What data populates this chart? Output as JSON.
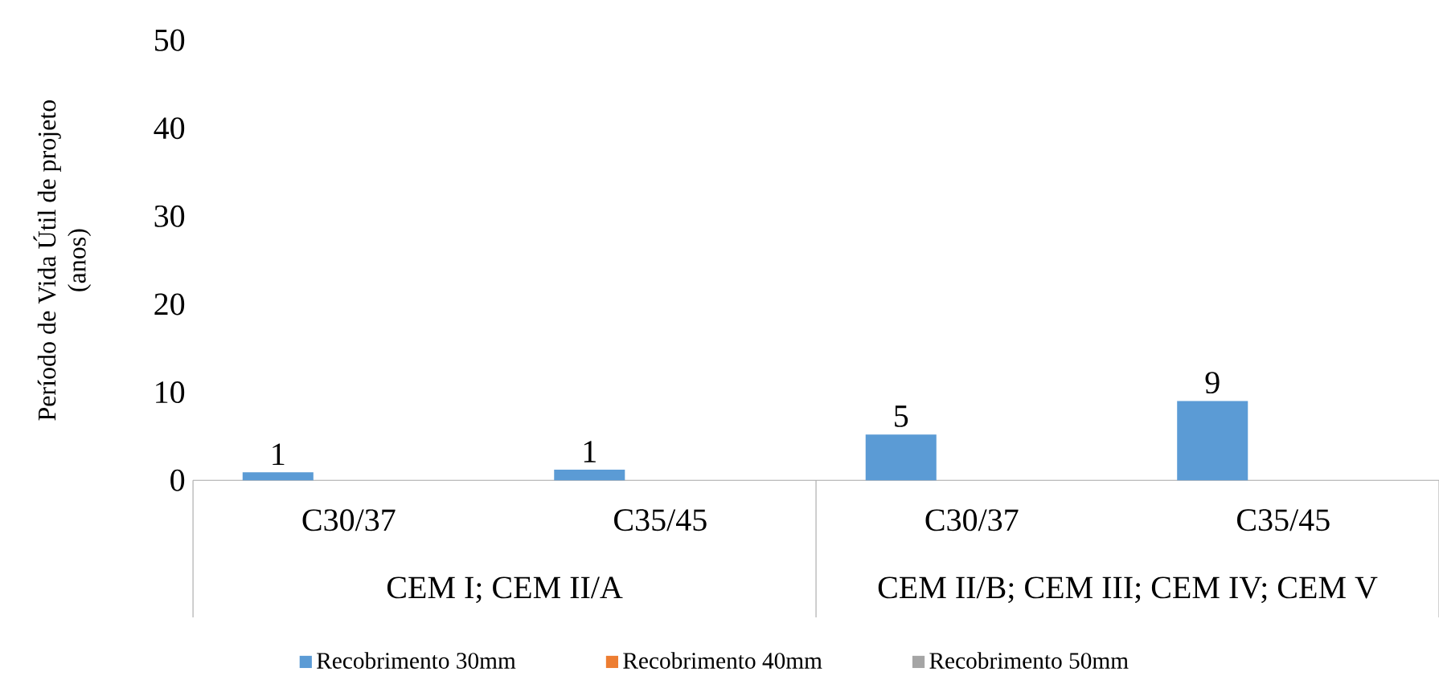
{
  "chart_data": {
    "type": "bar",
    "ylabel": "Período de Vida Útil de projeto (anos)",
    "categories": [
      "C30/37",
      "C35/45",
      "C30/37",
      "C35/45"
    ],
    "annotations": [
      "CEM I; CEM II/A",
      "CEM II/B; CEM III; CEM IV; CEM V"
    ],
    "series": [
      {
        "name": "Recobrimento 30mm",
        "color": "#5b9bd5",
        "values": [
          0.9,
          1.2,
          5.2,
          9.0
        ],
        "value_labels": [
          "1",
          "1",
          "5",
          "9"
        ]
      },
      {
        "name": "Recobrimento 40mm",
        "color": "#ed7d31",
        "values": [
          0,
          0,
          0,
          0
        ]
      },
      {
        "name": "Recobrimento 50mm",
        "color": "#a5a5a5",
        "values": [
          0,
          0,
          0,
          0
        ]
      }
    ],
    "ylim": [
      0,
      50
    ],
    "yticks": [
      0,
      10,
      20,
      30,
      40,
      50
    ],
    "grid": false,
    "legend": "bottom"
  }
}
